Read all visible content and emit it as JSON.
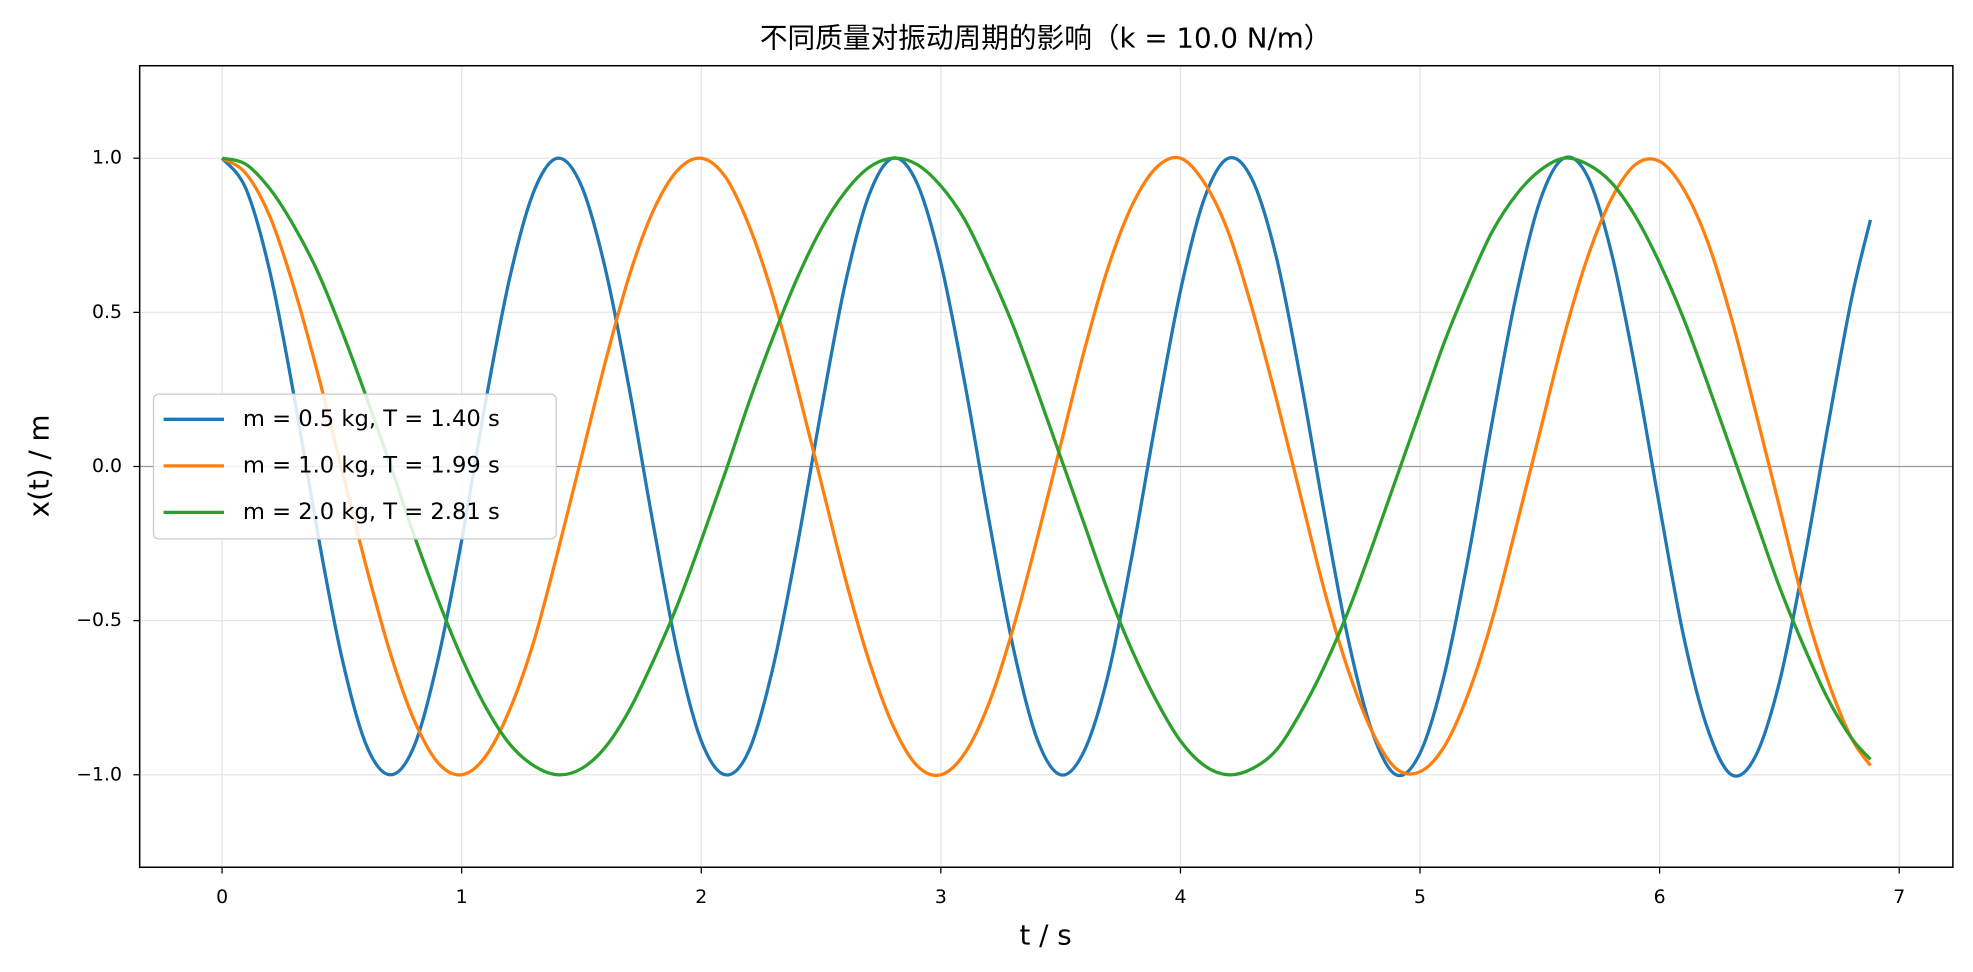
{
  "chart_data": {
    "type": "line",
    "title": "不同质量对振动周期的影响（k = 10.0 N/m）",
    "x_label": "t / s",
    "y_label": "x(t) / m",
    "x": [
      0,
      0.1,
      0.2,
      0.3,
      0.4,
      0.5,
      0.6,
      0.7,
      0.8,
      0.9,
      1,
      1.1,
      1.2,
      1.3,
      1.4,
      1.5,
      1.6,
      1.7,
      1.8,
      1.9,
      2,
      2.1,
      2.2,
      2.3,
      2.4,
      2.5,
      2.6,
      2.7,
      2.8,
      2.9,
      3,
      3.1,
      3.2,
      3.3,
      3.4,
      3.5,
      3.6,
      3.7,
      3.8,
      3.9,
      4,
      4.1,
      4.2,
      4.3,
      4.4,
      4.5,
      4.6,
      4.7,
      4.8,
      4.9,
      5,
      5.1,
      5.2,
      5.3,
      5.4,
      5.5,
      5.6,
      5.7,
      5.8,
      5.9,
      6,
      6.1,
      6.2,
      6.3,
      6.4,
      6.5,
      6.6,
      6.7,
      6.8,
      6.88
    ],
    "series": [
      {
        "name": "m = 0.5 kg,  T = 1.40 s",
        "color": "#1f77b4",
        "values": [
          1,
          0.9,
          0.63,
          0.23,
          -0.22,
          -0.62,
          -0.9,
          -1,
          -0.91,
          -0.63,
          -0.24,
          0.21,
          0.61,
          0.89,
          1,
          0.91,
          0.64,
          0.25,
          -0.19,
          -0.6,
          -0.89,
          -1,
          -0.92,
          -0.65,
          -0.26,
          0.18,
          0.59,
          0.88,
          1,
          0.92,
          0.66,
          0.27,
          -0.17,
          -0.58,
          -0.88,
          -1,
          -0.92,
          -0.67,
          -0.28,
          0.16,
          0.57,
          0.87,
          1,
          0.93,
          0.68,
          0.29,
          -0.15,
          -0.56,
          -0.86,
          -1,
          -0.93,
          -0.68,
          -0.3,
          0.14,
          0.55,
          0.86,
          1,
          0.94,
          0.69,
          0.31,
          -0.13,
          -0.55,
          -0.85,
          -1,
          -0.94,
          -0.7,
          -0.32,
          0.12,
          0.54,
          0.8
        ]
      },
      {
        "name": "m = 1.0 kg,  T = 1.99 s",
        "color": "#ff7f0e",
        "values": [
          1,
          0.95,
          0.81,
          0.58,
          0.3,
          -0.01,
          -0.32,
          -0.6,
          -0.82,
          -0.96,
          -1,
          -0.94,
          -0.79,
          -0.57,
          -0.28,
          0.03,
          0.34,
          0.62,
          0.83,
          0.96,
          1,
          0.94,
          0.78,
          0.55,
          0.26,
          -0.05,
          -0.36,
          -0.63,
          -0.84,
          -0.97,
          -1,
          -0.93,
          -0.77,
          -0.53,
          -0.24,
          0.07,
          0.38,
          0.65,
          0.85,
          0.97,
          1,
          0.92,
          0.76,
          0.51,
          0.22,
          -0.09,
          -0.4,
          -0.66,
          -0.86,
          -0.98,
          -0.99,
          -0.91,
          -0.74,
          -0.5,
          -0.2,
          0.11,
          0.42,
          0.68,
          0.87,
          0.98,
          0.99,
          0.9,
          0.73,
          0.48,
          0.18,
          -0.13,
          -0.44,
          -0.69,
          -0.88,
          -0.97
        ]
      },
      {
        "name": "m = 2.0 kg,  T = 2.81 s",
        "color": "#2ca02c",
        "values": [
          1,
          0.98,
          0.9,
          0.78,
          0.63,
          0.44,
          0.23,
          0.01,
          -0.22,
          -0.43,
          -0.62,
          -0.78,
          -0.9,
          -0.97,
          -1,
          -0.98,
          -0.91,
          -0.79,
          -0.63,
          -0.45,
          -0.24,
          -0.02,
          0.21,
          0.42,
          0.61,
          0.77,
          0.89,
          0.97,
          1,
          0.98,
          0.91,
          0.8,
          0.64,
          0.46,
          0.25,
          0.03,
          -0.19,
          -0.41,
          -0.6,
          -0.76,
          -0.89,
          -0.97,
          -1,
          -0.98,
          -0.92,
          -0.8,
          -0.65,
          -0.47,
          -0.26,
          -0.04,
          0.18,
          0.4,
          0.59,
          0.76,
          0.88,
          0.96,
          1,
          0.98,
          0.92,
          0.81,
          0.66,
          0.48,
          0.27,
          0.05,
          -0.17,
          -0.39,
          -0.58,
          -0.75,
          -0.88,
          -0.95
        ]
      }
    ],
    "xlim": [
      -0.344,
      7.224
    ],
    "ylim": [
      -1.3,
      1.3
    ],
    "xticks": [
      0,
      1,
      2,
      3,
      4,
      5,
      6,
      7
    ],
    "yticks": [
      {
        "value": -1,
        "label": "−1.0"
      },
      {
        "value": -0.5,
        "label": "−0.5"
      },
      {
        "value": 0,
        "label": "0.0"
      },
      {
        "value": 0.5,
        "label": "0.5"
      },
      {
        "value": 1,
        "label": "1.0"
      }
    ],
    "axhline": 0,
    "grid": true,
    "legend_loc": "center left"
  }
}
